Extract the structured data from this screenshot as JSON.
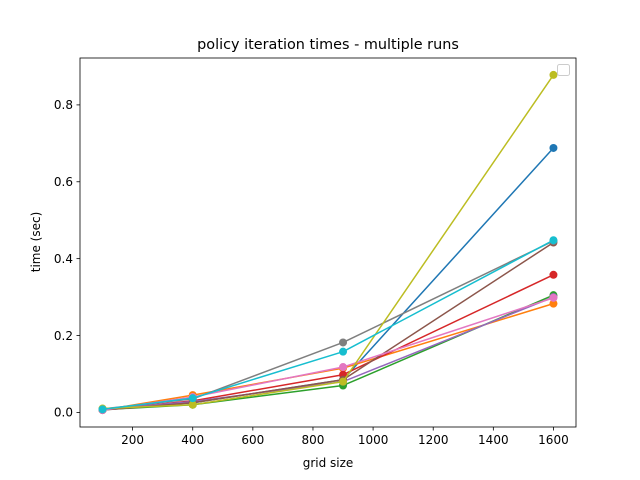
{
  "chart_data": {
    "type": "line",
    "title": "policy iteration times - multiple runs",
    "xlabel": "grid size",
    "ylabel": "time (sec)",
    "xlim": [
      25,
      1675
    ],
    "ylim": [
      -0.038,
      0.922
    ],
    "x_ticks": [
      200,
      400,
      600,
      800,
      1000,
      1200,
      1400,
      1600
    ],
    "y_ticks": [
      0.0,
      0.2,
      0.4,
      0.6,
      0.8
    ],
    "x_tick_labels": [
      "200",
      "400",
      "600",
      "800",
      "1000",
      "1200",
      "1400",
      "1600"
    ],
    "y_tick_labels": [
      "0.0",
      "0.2",
      "0.4",
      "0.6",
      "0.8"
    ],
    "grid": false,
    "legend": "top-right (empty)",
    "x": [
      100,
      400,
      900,
      1600
    ],
    "series": [
      {
        "color": "#1f77b4",
        "values": [
          0.008,
          0.025,
          0.085,
          0.688
        ]
      },
      {
        "color": "#ff7f0e",
        "values": [
          0.006,
          0.045,
          0.115,
          0.283
        ]
      },
      {
        "color": "#2ca02c",
        "values": [
          0.007,
          0.02,
          0.07,
          0.305
        ]
      },
      {
        "color": "#d62728",
        "values": [
          0.007,
          0.03,
          0.098,
          0.358
        ]
      },
      {
        "color": "#9467bd",
        "values": [
          0.008,
          0.028,
          0.08,
          0.3
        ]
      },
      {
        "color": "#8c564b",
        "values": [
          0.006,
          0.025,
          0.085,
          0.442
        ]
      },
      {
        "color": "#e377c2",
        "values": [
          0.006,
          0.04,
          0.118,
          0.298
        ]
      },
      {
        "color": "#7f7f7f",
        "values": [
          0.009,
          0.035,
          0.182,
          0.446
        ]
      },
      {
        "color": "#bcbd22",
        "values": [
          0.01,
          0.02,
          0.08,
          0.878
        ]
      },
      {
        "color": "#17becf",
        "values": [
          0.008,
          0.037,
          0.158,
          0.448
        ]
      }
    ]
  }
}
